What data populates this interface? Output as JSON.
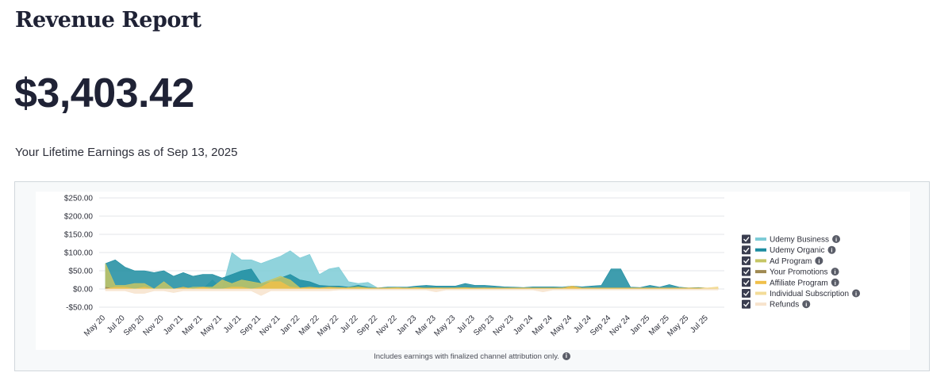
{
  "header": {
    "title": "Revenue Report",
    "total": "$3,403.42",
    "subtitle": "Your Lifetime Earnings as of Sep 13, 2025"
  },
  "footnote": "Includes earnings with finalized channel attribution only.",
  "chart_data": {
    "type": "area",
    "ylim": [
      -50,
      250
    ],
    "y_ticks": [
      250,
      200,
      150,
      100,
      50,
      0,
      -50
    ],
    "y_tick_labels": [
      "$250.00",
      "$200.00",
      "$150.00",
      "$100.00",
      "$50.00",
      "$0.00",
      "-$50.00"
    ],
    "x_tick_labels": [
      "May 20",
      "Jul 20",
      "Sep 20",
      "Nov 20",
      "Jan 21",
      "Mar 21",
      "May 21",
      "Jul 21",
      "Sep 21",
      "Nov 21",
      "Jan 22",
      "Mar 22",
      "May 22",
      "Jul 22",
      "Sep 22",
      "Nov 22",
      "Jan 23",
      "Mar 23",
      "May 23",
      "Jul 23",
      "Sep 23",
      "Nov 23",
      "Jan 24",
      "Mar 24",
      "May 24",
      "Jul 24",
      "Sep 24",
      "Nov 24",
      "Jan 25",
      "Mar 25",
      "May 25",
      "Jul 25"
    ],
    "x": [
      "May 20",
      "Jun 20",
      "Jul 20",
      "Aug 20",
      "Sep 20",
      "Oct 20",
      "Nov 20",
      "Dec 20",
      "Jan 21",
      "Feb 21",
      "Mar 21",
      "Apr 21",
      "May 21",
      "Jun 21",
      "Jul 21",
      "Aug 21",
      "Sep 21",
      "Oct 21",
      "Nov 21",
      "Dec 21",
      "Jan 22",
      "Feb 22",
      "Mar 22",
      "Apr 22",
      "May 22",
      "Jun 22",
      "Jul 22",
      "Aug 22",
      "Sep 22",
      "Oct 22",
      "Nov 22",
      "Dec 22",
      "Jan 23",
      "Feb 23",
      "Mar 23",
      "Apr 23",
      "May 23",
      "Jun 23",
      "Jul 23",
      "Aug 23",
      "Sep 23",
      "Oct 23",
      "Nov 23",
      "Dec 23",
      "Jan 24",
      "Feb 24",
      "Mar 24",
      "Apr 24",
      "May 24",
      "Jun 24",
      "Jul 24",
      "Aug 24",
      "Sep 24",
      "Oct 24",
      "Nov 24",
      "Dec 24",
      "Jan 25",
      "Feb 25",
      "Mar 25",
      "Apr 25",
      "May 25",
      "Jun 25",
      "Jul 25",
      "Aug 25"
    ],
    "series": [
      {
        "name": "Udemy Business",
        "color": "#7dcbd6",
        "values": [
          0,
          0,
          0,
          0,
          0,
          0,
          0,
          0,
          0,
          0,
          0,
          25,
          0,
          100,
          80,
          80,
          70,
          80,
          90,
          105,
          85,
          95,
          40,
          55,
          60,
          20,
          15,
          18,
          3,
          5,
          5,
          3,
          4,
          6,
          5,
          0,
          4,
          5,
          4,
          3,
          4,
          4,
          3,
          3,
          2,
          2,
          3,
          3,
          3,
          2,
          2,
          2,
          2,
          2,
          2,
          2,
          2,
          2,
          2,
          2,
          2,
          2,
          2,
          2
        ]
      },
      {
        "name": "Udemy Organic",
        "color": "#1c8ca0",
        "values": [
          70,
          80,
          60,
          50,
          50,
          45,
          50,
          35,
          45,
          35,
          40,
          40,
          30,
          40,
          50,
          55,
          15,
          20,
          30,
          40,
          25,
          20,
          10,
          8,
          8,
          5,
          10,
          5,
          3,
          5,
          5,
          5,
          8,
          10,
          8,
          8,
          8,
          15,
          10,
          10,
          8,
          6,
          5,
          4,
          6,
          6,
          6,
          5,
          8,
          6,
          8,
          10,
          55,
          55,
          5,
          4,
          10,
          5,
          12,
          5,
          3,
          4,
          2,
          2
        ]
      },
      {
        "name": "Ad Program",
        "color": "#c5c564",
        "values": [
          70,
          10,
          10,
          15,
          15,
          0,
          20,
          0,
          0,
          5,
          5,
          5,
          25,
          15,
          25,
          20,
          15,
          25,
          35,
          25,
          3,
          2,
          3,
          3,
          0,
          4,
          6,
          3,
          0,
          3,
          4,
          2,
          4,
          2,
          3,
          0,
          3,
          4,
          2,
          3,
          1,
          1,
          1,
          1,
          1,
          1,
          1,
          1,
          5,
          1,
          1,
          1,
          1,
          1,
          1,
          1,
          1,
          1,
          1,
          1,
          1,
          1,
          1,
          1
        ]
      },
      {
        "name": "Your Promotions",
        "color": "#a08a52",
        "values": [
          5,
          0,
          0,
          0,
          0,
          0,
          0,
          0,
          0,
          0,
          0,
          0,
          0,
          0,
          0,
          0,
          0,
          0,
          0,
          0,
          0,
          0,
          0,
          0,
          0,
          0,
          0,
          0,
          0,
          0,
          0,
          0,
          0,
          0,
          0,
          0,
          0,
          0,
          0,
          0,
          0,
          0,
          0,
          0,
          0,
          0,
          0,
          0,
          0,
          0,
          0,
          0,
          0,
          0,
          0,
          0,
          0,
          0,
          0,
          0,
          0,
          0,
          0,
          0
        ]
      },
      {
        "name": "Affiliate Program",
        "color": "#f0c04a",
        "values": [
          0,
          5,
          5,
          0,
          5,
          0,
          0,
          0,
          5,
          0,
          5,
          0,
          0,
          5,
          5,
          0,
          5,
          20,
          20,
          5,
          3,
          5,
          3,
          5,
          4,
          3,
          3,
          3,
          3,
          3,
          3,
          3,
          3,
          3,
          3,
          3,
          3,
          3,
          3,
          3,
          3,
          3,
          3,
          3,
          3,
          3,
          3,
          3,
          8,
          3,
          3,
          3,
          3,
          3,
          3,
          3,
          3,
          3,
          3,
          3,
          3,
          3,
          3,
          3
        ]
      },
      {
        "name": "Individual Subscription",
        "color": "#f3dc98",
        "values": [
          0,
          0,
          0,
          0,
          0,
          0,
          0,
          0,
          0,
          0,
          0,
          0,
          0,
          0,
          0,
          0,
          0,
          0,
          0,
          0,
          0,
          0,
          0,
          0,
          0,
          0,
          0,
          0,
          0,
          0,
          0,
          0,
          0,
          0,
          0,
          0,
          0,
          0,
          0,
          0,
          0,
          0,
          0,
          0,
          0,
          0,
          0,
          0,
          0,
          0,
          0,
          0,
          0,
          0,
          0,
          0,
          0,
          0,
          0,
          0,
          0,
          0,
          3,
          6
        ]
      },
      {
        "name": "Refunds",
        "color": "#f7e3cc",
        "values": [
          -5,
          -5,
          -5,
          -12,
          -12,
          -5,
          -5,
          -10,
          -5,
          -5,
          -5,
          -5,
          -5,
          -5,
          -5,
          -5,
          -18,
          -5,
          -5,
          -5,
          -5,
          -5,
          -5,
          -5,
          -3,
          -3,
          -3,
          -3,
          -3,
          -3,
          -3,
          -3,
          -3,
          -3,
          -8,
          -3,
          -3,
          -3,
          -3,
          -3,
          -3,
          -3,
          -3,
          -3,
          -3,
          -8,
          -3,
          -3,
          -3,
          -3,
          -3,
          -3,
          -3,
          -3,
          -3,
          -3,
          -3,
          -3,
          -3,
          -3,
          -3,
          -3,
          -3,
          -3
        ]
      }
    ],
    "legend_position": "right"
  }
}
